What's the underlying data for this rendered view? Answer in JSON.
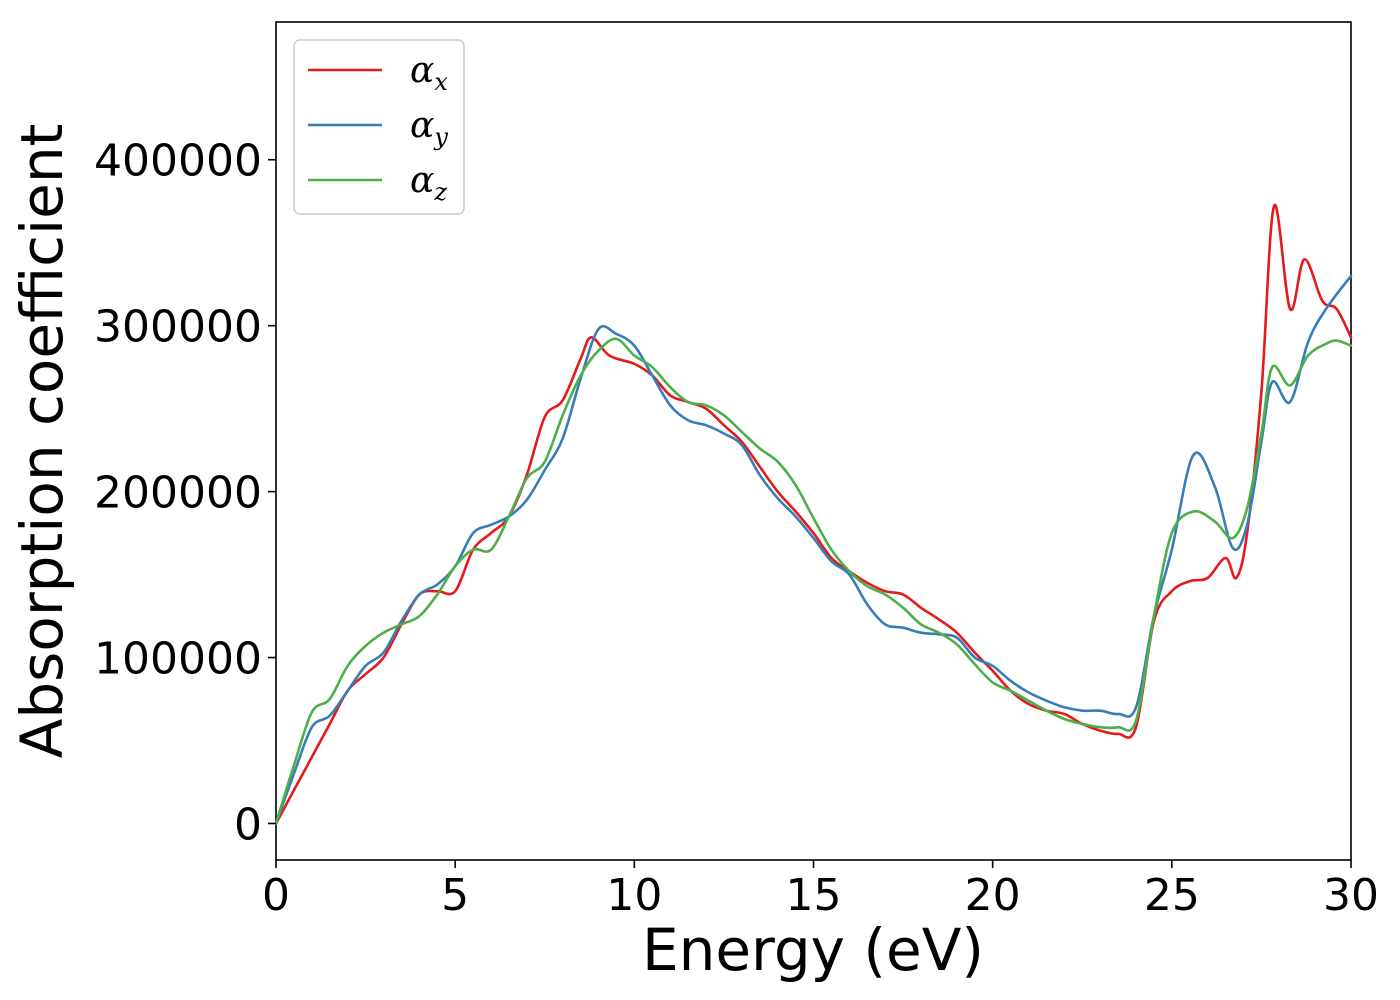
{
  "chart_data": {
    "type": "line",
    "title": "",
    "xlabel": "Energy (eV)",
    "ylabel": "Absorption coefficient",
    "xlim": [
      0,
      30
    ],
    "ylim": [
      -22000,
      483000
    ],
    "xticks": [
      0,
      5,
      10,
      15,
      20,
      25,
      30
    ],
    "yticks": [
      0,
      100000,
      200000,
      300000,
      400000
    ],
    "grid": false,
    "legend_position": "top-left",
    "series": [
      {
        "name": "αx",
        "symbol": "α",
        "subscript": "x",
        "color": "#e41a1c",
        "x": [
          0,
          0.5,
          1,
          1.5,
          2,
          2.5,
          3,
          3.5,
          4,
          4.5,
          5,
          5.5,
          6,
          6.5,
          7,
          7.5,
          8,
          8.5,
          8.8,
          9.3,
          10,
          10.5,
          11,
          11.5,
          12,
          12.5,
          13,
          13.5,
          14,
          14.5,
          15,
          15.5,
          16,
          16.5,
          17,
          17.5,
          18,
          18.5,
          19,
          19.5,
          20,
          20.5,
          21,
          21.5,
          22,
          22.5,
          23,
          23.5,
          24,
          24.5,
          25,
          25.5,
          26,
          26.5,
          26.8,
          27.1,
          27.5,
          27.85,
          28.3,
          28.7,
          29.2,
          29.6,
          30
        ],
        "y": [
          0,
          20000,
          40000,
          60000,
          80000,
          90000,
          100000,
          120000,
          138000,
          140000,
          140000,
          165000,
          175000,
          185000,
          210000,
          245000,
          255000,
          280000,
          293000,
          282000,
          277000,
          270000,
          258000,
          254000,
          250000,
          240000,
          230000,
          215000,
          200000,
          188000,
          175000,
          160000,
          152000,
          145000,
          140000,
          138000,
          130000,
          123000,
          115000,
          103000,
          92000,
          80000,
          72000,
          68000,
          66000,
          60000,
          56000,
          54000,
          58000,
          122000,
          140000,
          146000,
          148000,
          160000,
          148000,
          175000,
          260000,
          372000,
          310000,
          340000,
          315000,
          310000,
          293000
        ]
      },
      {
        "name": "αy",
        "symbol": "α",
        "subscript": "y",
        "color": "#377eb8",
        "x": [
          0,
          0.5,
          1,
          1.5,
          2,
          2.5,
          3,
          3.5,
          4,
          4.5,
          5,
          5.5,
          6,
          6.5,
          7,
          7.5,
          8,
          8.5,
          9,
          9.5,
          10,
          10.5,
          11,
          11.5,
          12,
          12.5,
          13,
          13.5,
          14,
          14.5,
          15,
          15.5,
          16,
          16.5,
          17,
          17.5,
          18,
          18.5,
          19,
          19.5,
          20,
          20.5,
          21,
          21.5,
          22,
          22.5,
          23,
          23.5,
          24,
          24.5,
          25,
          25.6,
          26.2,
          26.7,
          27.1,
          27.5,
          27.8,
          28.3,
          28.8,
          29.3,
          30
        ],
        "y": [
          0,
          30000,
          58000,
          65000,
          80000,
          95000,
          103000,
          122000,
          138000,
          144000,
          155000,
          175000,
          180000,
          185000,
          195000,
          213000,
          232000,
          268000,
          298000,
          295000,
          288000,
          270000,
          252000,
          243000,
          240000,
          235000,
          228000,
          210000,
          196000,
          185000,
          172000,
          158000,
          150000,
          132000,
          120000,
          118000,
          115000,
          114000,
          112000,
          100000,
          95000,
          86000,
          79000,
          74000,
          70000,
          68000,
          68000,
          66000,
          70000,
          125000,
          165000,
          222000,
          203000,
          166000,
          180000,
          230000,
          266000,
          254000,
          290000,
          310000,
          330000
        ]
      },
      {
        "name": "αz",
        "symbol": "α",
        "subscript": "z",
        "color": "#4daf4a",
        "x": [
          0,
          0.5,
          1,
          1.5,
          2,
          2.5,
          3,
          3.5,
          4,
          4.5,
          5,
          5.5,
          6,
          6.5,
          7,
          7.5,
          8,
          8.5,
          9,
          9.5,
          10,
          10.5,
          11,
          11.5,
          12,
          12.5,
          13,
          13.5,
          14,
          14.5,
          15,
          15.5,
          16,
          16.5,
          17,
          17.5,
          18,
          18.5,
          19,
          19.5,
          20,
          20.5,
          21,
          21.5,
          22,
          22.5,
          23,
          23.5,
          24,
          24.5,
          25,
          25.6,
          26.2,
          26.7,
          27.1,
          27.5,
          27.8,
          28.3,
          28.8,
          29.3,
          29.6,
          30
        ],
        "y": [
          0,
          35000,
          67000,
          75000,
          95000,
          107000,
          115000,
          120000,
          125000,
          138000,
          155000,
          165000,
          165000,
          185000,
          208000,
          218000,
          246000,
          270000,
          285000,
          292000,
          282000,
          275000,
          263000,
          254000,
          252000,
          246000,
          236000,
          226000,
          218000,
          204000,
          184000,
          165000,
          152000,
          143000,
          138000,
          130000,
          120000,
          115000,
          108000,
          96000,
          85000,
          80000,
          74000,
          68000,
          63000,
          60000,
          58000,
          58000,
          62000,
          125000,
          175000,
          188000,
          182000,
          172000,
          190000,
          235000,
          275000,
          264000,
          282000,
          289000,
          291000,
          288000
        ]
      }
    ]
  }
}
